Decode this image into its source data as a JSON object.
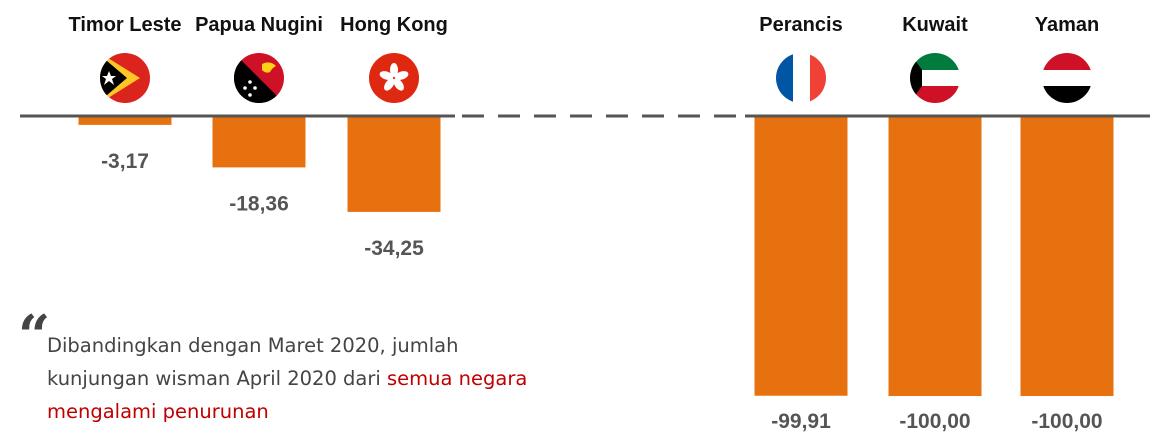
{
  "chart_data": {
    "type": "bar",
    "categories": [
      "Timor Leste",
      "Papua Nugini",
      "Hong Kong",
      "Perancis",
      "Kuwait",
      "Yaman"
    ],
    "values": [
      -3.17,
      -18.36,
      -34.25,
      -99.91,
      -100.0,
      -100.0
    ],
    "value_labels": [
      "-3,17",
      "-18,36",
      "-34,25",
      "-99,91",
      "-100,00",
      "-100,00"
    ],
    "color": "#e8710f",
    "ylim": [
      -100,
      0
    ],
    "quote_mark": "“",
    "annotation": [
      [
        {
          "text": "Dibandingkan dengan Maret 2020, jumlah"
        }
      ],
      [
        {
          "text": "kunjungan wisman April 2020 dari "
        },
        {
          "text": "semua negara",
          "color": "#c00000"
        }
      ],
      [
        {
          "text": "mengalami penurunan",
          "color": "#c00000"
        }
      ]
    ]
  }
}
